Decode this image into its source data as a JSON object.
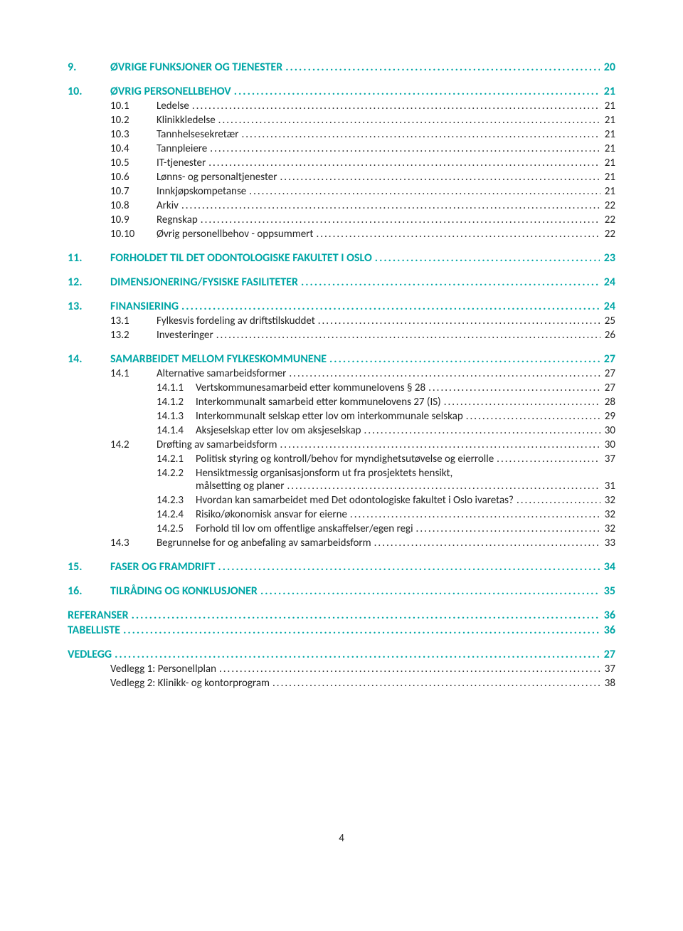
{
  "colors": {
    "heading": "#00a6a6",
    "body_text": "#222222",
    "background": "#ffffff"
  },
  "typography": {
    "heading_fontsize": 16,
    "body_fontsize": 15,
    "heading_weight": 700,
    "body_weight": 400
  },
  "page_number": "4",
  "toc": [
    {
      "lvl": 1,
      "num": "9.",
      "label": "ØVRIGE FUNKSJONER OG TJENESTER",
      "page": "20"
    },
    {
      "lvl": 1,
      "num": "10.",
      "label": "ØVRIG PERSONELLBEHOV",
      "page": "21"
    },
    {
      "lvl": 2,
      "num": "10.1",
      "label": "Ledelse",
      "page": "21"
    },
    {
      "lvl": 2,
      "num": "10.2",
      "label": "Klinikkledelse",
      "page": "21"
    },
    {
      "lvl": 2,
      "num": "10.3",
      "label": "Tannhelsesekretær",
      "page": "21"
    },
    {
      "lvl": 2,
      "num": "10.4",
      "label": "Tannpleiere",
      "page": "21"
    },
    {
      "lvl": 2,
      "num": "10.5",
      "label": "IT-tjenester",
      "page": "21"
    },
    {
      "lvl": 2,
      "num": "10.6",
      "label": "Lønns- og personaltjenester",
      "page": "21"
    },
    {
      "lvl": 2,
      "num": "10.7",
      "label": "Innkjøpskompetanse",
      "page": "21"
    },
    {
      "lvl": 2,
      "num": "10.8",
      "label": "Arkiv",
      "page": "22"
    },
    {
      "lvl": 2,
      "num": "10.9",
      "label": "Regnskap",
      "page": "22"
    },
    {
      "lvl": 2,
      "num": "10.10",
      "label": "Øvrig personellbehov - oppsummert",
      "page": "22"
    },
    {
      "lvl": 1,
      "num": "11.",
      "label": "FORHOLDET TIL DET ODONTOLOGISKE FAKULTET I OSLO",
      "page": "23"
    },
    {
      "lvl": 1,
      "num": "12.",
      "label": "DIMENSJONERING/FYSISKE FASILITETER",
      "page": "24"
    },
    {
      "lvl": 1,
      "num": "13.",
      "label": "FINANSIERING",
      "page": "24"
    },
    {
      "lvl": 2,
      "num": "13.1",
      "label": "Fylkesvis fordeling av driftstilskuddet",
      "page": "25"
    },
    {
      "lvl": 2,
      "num": "13.2",
      "label": "Investeringer",
      "page": "26"
    },
    {
      "lvl": 1,
      "num": "14.",
      "label": "SAMARBEIDET MELLOM FYLKESKOMMUNENE",
      "page": "27"
    },
    {
      "lvl": 2,
      "num": "14.1",
      "label": "Alternative samarbeidsformer",
      "page": "27"
    },
    {
      "lvl": 3,
      "num": "14.1.1",
      "label": "Vertskommunesamarbeid etter kommunelovens § 28",
      "page": "27"
    },
    {
      "lvl": 3,
      "num": "14.1.2",
      "label": "Interkommunalt samarbeid etter kommunelovens 27 (IS)",
      "page": "28"
    },
    {
      "lvl": 3,
      "num": "14.1.3",
      "label": "Interkommunalt selskap etter lov om interkommunale selskap",
      "page": "29"
    },
    {
      "lvl": 3,
      "num": "14.1.4",
      "label": "Aksjeselskap etter lov om aksjeselskap",
      "page": "30"
    },
    {
      "lvl": 2,
      "num": "14.2",
      "label": "Drøfting av samarbeidsform",
      "page": "30"
    },
    {
      "lvl": 3,
      "num": "14.2.1",
      "label": "Politisk styring og kontroll/behov for myndighetsutøvelse og eierrolle",
      "page": "37"
    },
    {
      "lvl": 3,
      "num": "14.2.2",
      "label": "Hensiktmessig organisasjonsform ut fra prosjektets hensikt,",
      "nopage": true
    },
    {
      "lvl": "3c",
      "label": "målsetting og planer",
      "page": "31"
    },
    {
      "lvl": 3,
      "num": "14.2.3",
      "label": "Hvordan kan samarbeidet med Det odontologiske fakultet i Oslo ivaretas?",
      "page": "32"
    },
    {
      "lvl": 3,
      "num": "14.2.4",
      "label": "Risiko/økonomisk ansvar for eierne",
      "page": "32"
    },
    {
      "lvl": 3,
      "num": "14.2.5",
      "label": "Forhold til lov om offentlige anskaffelser/egen regi",
      "page": "32"
    },
    {
      "lvl": 2,
      "num": "14.3",
      "label": "Begrunnelse for og anbefaling av samarbeidsform",
      "page": "33"
    },
    {
      "lvl": 1,
      "num": "15.",
      "label": "FASER OG FRAMDRIFT",
      "page": "34"
    },
    {
      "lvl": 1,
      "num": "16.",
      "label": "TILRÅDING OG KONKLUSJONER",
      "page": "35"
    },
    {
      "lvl": 1,
      "noind": true,
      "label": "REFERANSER",
      "page": "36"
    },
    {
      "lvl": 1,
      "noind": true,
      "notop": true,
      "label": "TABELLISTE",
      "page": "36"
    },
    {
      "lvl": 1,
      "noind": true,
      "label": "VEDLEGG",
      "page": "27"
    },
    {
      "lvl": 2,
      "noind2": true,
      "label": "Vedlegg 1: Personellplan",
      "page": "37"
    },
    {
      "lvl": 2,
      "noind2": true,
      "label": "Vedlegg 2: Klinikk- og kontorprogram",
      "page": "38"
    }
  ]
}
